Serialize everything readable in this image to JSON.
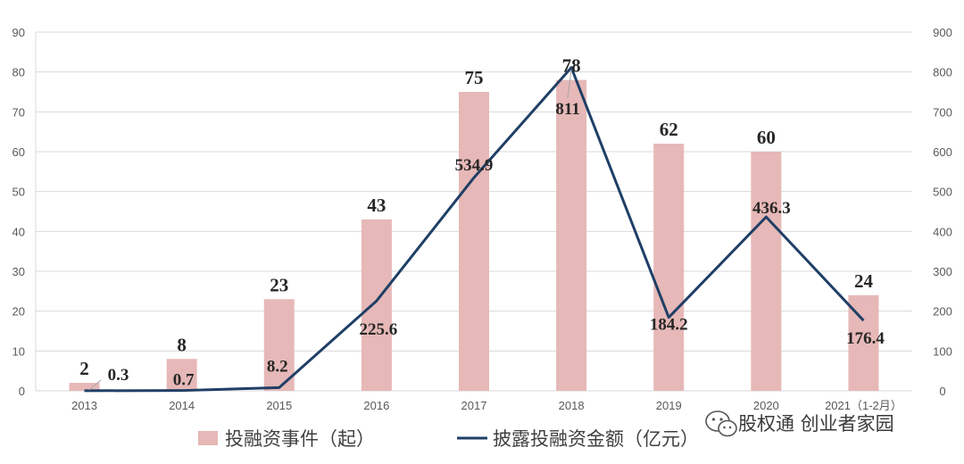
{
  "chart_data": {
    "type": "bar",
    "categories": [
      "2013",
      "2014",
      "2015",
      "2016",
      "2017",
      "2018",
      "2019",
      "2020",
      "2021（1-2月）"
    ],
    "series": [
      {
        "name": "投融资事件（起）",
        "type": "bar",
        "axis": "left",
        "color": "#e6b8b7",
        "values": [
          2,
          8,
          23,
          43,
          75,
          78,
          62,
          60,
          24
        ],
        "labels": [
          "2",
          "8",
          "23",
          "43",
          "75",
          "78",
          "62",
          "60",
          "24"
        ]
      },
      {
        "name": "披露投融资金额（亿元）",
        "type": "line",
        "axis": "right",
        "color": "#1f3f66",
        "values": [
          0.3,
          0.7,
          8.2,
          225.6,
          534.9,
          811,
          184.2,
          436.3,
          176.4
        ],
        "labels": [
          "0.3",
          "0.7",
          "8.2",
          "225.6",
          "534.9",
          "811",
          "184.2",
          "436.3",
          "176.4"
        ]
      }
    ],
    "y_left": {
      "min": 0,
      "max": 90,
      "ticks": [
        "0",
        "10",
        "20",
        "30",
        "40",
        "50",
        "60",
        "70",
        "80",
        "90"
      ]
    },
    "y_right": {
      "min": 0,
      "max": 900,
      "ticks": [
        "0",
        "100",
        "200",
        "300",
        "400",
        "500",
        "600",
        "700",
        "800",
        "900"
      ]
    },
    "grid": true,
    "legend_position": "bottom"
  },
  "legend": {
    "bar_label": "投融资事件（起）",
    "line_label": "披露投融资金额（亿元）"
  },
  "watermark": {
    "text": "股权通 创业者家园",
    "icon": "wechat-icon"
  }
}
